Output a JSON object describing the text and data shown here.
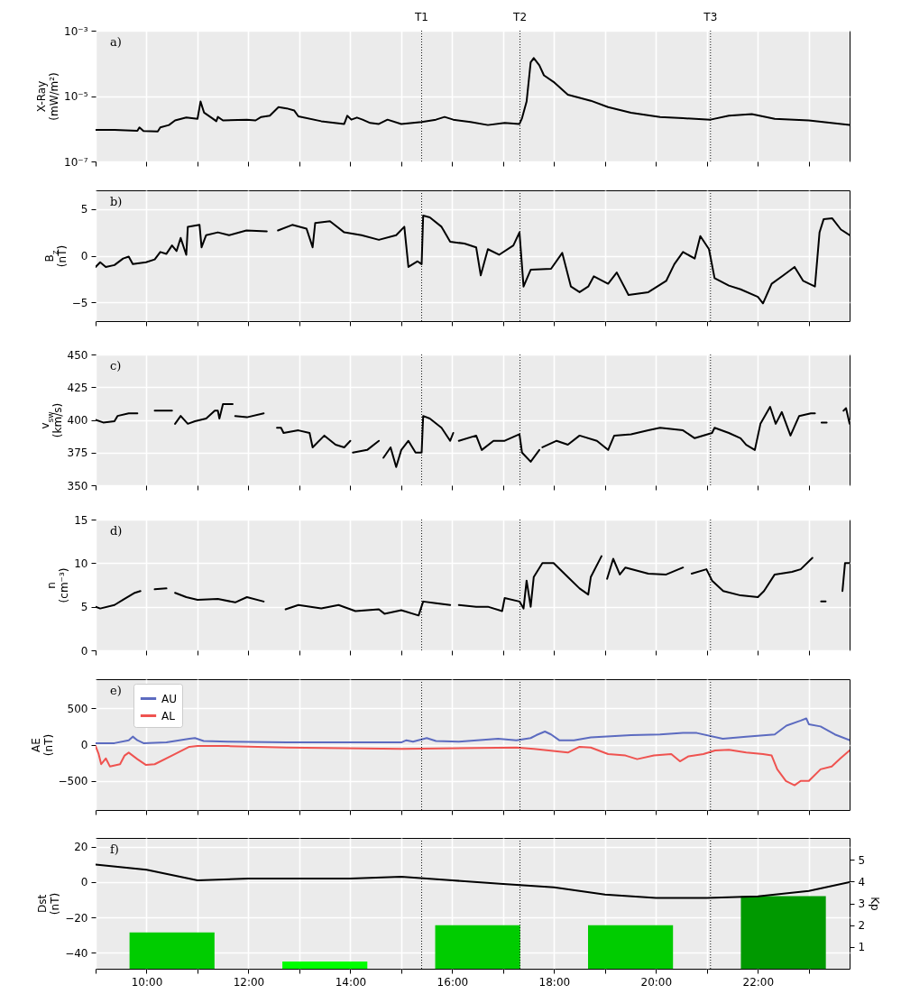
{
  "chart_data": [
    {
      "type": "line",
      "ylabel": "X-Ray\n(mW/m²)",
      "annotations": [
        "a)"
      ],
      "x": [
        9,
        9.37,
        9.82,
        9.86,
        9.94,
        10.22,
        10.27,
        10.44,
        10.56,
        10.78,
        11,
        11.06,
        11.13,
        11.29,
        11.37,
        11.4,
        11.5,
        11.97,
        12.14,
        12.25,
        12.42,
        12.59,
        12.75,
        12.9,
        12.98,
        13.43,
        13.88,
        13.94,
        14.02,
        14.13,
        14.24,
        14.39,
        14.56,
        14.73,
        15,
        15.4,
        15.68,
        15.85,
        16.02,
        16.36,
        16.7,
        17.03,
        17.32,
        17.37,
        17.46,
        17.54,
        17.6,
        17.71,
        17.8,
        17.99,
        18.27,
        18.72,
        19.06,
        19.51,
        20.08,
        20.53,
        21.07,
        21.43,
        21.88,
        22.33,
        23,
        23.8
      ],
      "series": [
        {
          "color": "#000000",
          "values": [
            9.3e-07,
            9.3e-07,
            8.7e-07,
            1.1e-06,
            8.5e-07,
            8.3e-07,
            1.1e-06,
            1.3e-06,
            1.8e-06,
            2.2e-06,
            2e-06,
            6.8e-06,
            3.1e-06,
            2.1e-06,
            1.7e-06,
            2.3e-06,
            1.8e-06,
            1.9e-06,
            1.8e-06,
            2.3e-06,
            2.5e-06,
            4.6e-06,
            4.2e-06,
            3.6e-06,
            2.4e-06,
            1.7e-06,
            1.4e-06,
            2.5e-06,
            1.9e-06,
            2.2e-06,
            1.9e-06,
            1.5e-06,
            1.4e-06,
            1.9e-06,
            1.4e-06,
            1.6e-06,
            1.9e-06,
            2.3e-06,
            1.9e-06,
            1.6e-06,
            1.3e-06,
            1.5e-06,
            1.4e-06,
            2.1e-06,
            6.8e-06,
            0.000107,
            0.000145,
            8.7e-05,
            4.3e-05,
            2.7e-05,
            1.1e-05,
            7.2e-06,
            4.6e-06,
            3.1e-06,
            2.3e-06,
            2.1e-06,
            1.9e-06,
            2.5e-06,
            2.8e-06,
            2e-06,
            1.8e-06,
            1.3e-06
          ]
        }
      ],
      "xlim": [
        9,
        23.8
      ],
      "xticks": [
        9,
        10,
        11,
        12,
        13,
        14,
        15,
        16,
        17,
        18,
        19,
        20,
        21,
        22,
        23
      ],
      "ylim": [
        1e-07,
        0.001
      ],
      "yticks": [
        {
          "value": 1e-07,
          "label": "10⁻⁷"
        },
        {
          "value": 1e-05,
          "label": "10⁻⁵"
        },
        {
          "value": 0.001,
          "label": "10⁻³"
        }
      ],
      "log": true,
      "grid": true,
      "tick_labels": "y",
      "ref_lines": [
        {
          "axis": "x",
          "value": 15.4,
          "label": "T1",
          "color": "#000000",
          "line_style": "dotted"
        },
        {
          "axis": "x",
          "value": 17.33,
          "label": "T2",
          "color": "#000000",
          "line_style": "dotted"
        },
        {
          "axis": "x",
          "value": 21.07,
          "label": "T3",
          "color": "#000000",
          "line_style": "dotted"
        }
      ]
    },
    {
      "type": "line",
      "ylabel": "B$_{z}$\n(nT)",
      "annotations": [
        "b)"
      ],
      "x": [
        9,
        9.09,
        9.2,
        9.37,
        9.54,
        9.65,
        9.73,
        9.99,
        10.16,
        10.27,
        10.39,
        10.5,
        10.59,
        10.67,
        10.78,
        10.81,
        11.04,
        11.08,
        11.17,
        11.4,
        11.62,
        11.96,
        12.36,
        12.45,
        12.58,
        12.86,
        13.14,
        13.26,
        13.31,
        13.6,
        13.88,
        14.22,
        14.56,
        14.9,
        15.06,
        15.14,
        15.32,
        15.4,
        15.43,
        15.56,
        15.79,
        15.96,
        16.24,
        16.47,
        16.56,
        16.7,
        16.92,
        17.2,
        17.32,
        17.4,
        17.54,
        17.94,
        18.16,
        18.33,
        18.5,
        18.67,
        18.78,
        19.06,
        19.23,
        19.46,
        19.85,
        20.2,
        20.36,
        20.53,
        20.76,
        20.87,
        21.04,
        21.15,
        21.43,
        21.66,
        22,
        22.1,
        22.27,
        22.5,
        22.72,
        22.89,
        23.12,
        23.21,
        23.29,
        23.46,
        23.63,
        23.8
      ],
      "series": [
        {
          "color": "#000000",
          "values": [
            -1.2,
            -0.7,
            -1.2,
            -1,
            -0.3,
            -0.1,
            -0.9,
            -0.7,
            -0.4,
            0.4,
            0.2,
            1.1,
            0.5,
            1.9,
            0.1,
            3.1,
            3.3,
            0.9,
            2.2,
            2.5,
            2.2,
            2.7,
            2.6,
            null,
            2.7,
            3.3,
            2.9,
            0.9,
            3.5,
            3.7,
            2.5,
            2.2,
            1.7,
            2.2,
            3.1,
            -1.2,
            -0.6,
            -0.9,
            4.3,
            4.1,
            3.1,
            1.5,
            1.3,
            0.9,
            -2.1,
            0.7,
            0.1,
            1.1,
            2.5,
            -3.3,
            -1.5,
            -1.4,
            0.3,
            -3.3,
            -3.9,
            -3.3,
            -2.2,
            -3,
            -1.8,
            -4.2,
            -3.9,
            -2.7,
            -0.9,
            0.4,
            -0.3,
            2.1,
            0.7,
            -2.4,
            -3.2,
            -3.6,
            -4.4,
            -5.1,
            -3,
            -2.1,
            -1.2,
            -2.7,
            -3.3,
            2.5,
            3.9,
            4,
            2.8,
            2.2
          ]
        }
      ],
      "xlim": [
        9,
        23.8
      ],
      "xticks": [
        9,
        10,
        11,
        12,
        13,
        14,
        15,
        16,
        17,
        18,
        19,
        20,
        21,
        22,
        23
      ],
      "ylim": [
        -7,
        7
      ],
      "yticks": [
        -5,
        0,
        5
      ],
      "grid": true,
      "tick_labels": "y",
      "ref_lines": [
        {
          "axis": "x",
          "value": 15.4,
          "color": "#000000",
          "line_style": "dotted"
        },
        {
          "axis": "x",
          "value": 17.33,
          "color": "#000000",
          "line_style": "dotted"
        },
        {
          "axis": "x",
          "value": 21.07,
          "color": "#000000",
          "line_style": "dotted"
        }
      ]
    },
    {
      "type": "line",
      "ylabel": "v$_{sw}$\n(km/s)",
      "annotations": [
        "c)"
      ],
      "x": [
        9,
        9.15,
        9.37,
        9.43,
        9.65,
        9.82,
        9.9,
        10.16,
        10.5,
        10.53,
        10.56,
        10.67,
        10.81,
        10.95,
        11.17,
        11.34,
        11.4,
        11.43,
        11.5,
        11.69,
        11.72,
        11.74,
        11.97,
        12.3,
        12.4,
        12.56,
        12.64,
        12.69,
        12.98,
        13.2,
        13.26,
        13.49,
        13.71,
        13.88,
        14,
        14.03,
        14.05,
        14.33,
        14.56,
        14.6,
        14.65,
        14.79,
        14.9,
        15,
        15.14,
        15.28,
        15.4,
        15.43,
        15.56,
        15.79,
        15.96,
        16.02,
        16.08,
        16.13,
        16.47,
        16.58,
        16.81,
        17.03,
        17.32,
        17.37,
        17.54,
        17.71,
        17.74,
        17.77,
        18.05,
        18.27,
        18.5,
        18.84,
        19.06,
        19.18,
        19.51,
        19.85,
        20.08,
        20.53,
        20.76,
        21.1,
        21.15,
        21.43,
        21.66,
        21.77,
        21.94,
        22.05,
        22.24,
        22.35,
        22.47,
        22.64,
        22.81,
        23.04,
        23.12,
        23.2,
        23.25,
        23.35,
        23.45,
        23.68,
        23.73,
        23.8
      ],
      "series": [
        {
          "color": "#000000",
          "values": [
            400,
            398,
            399,
            403,
            405,
            405,
            null,
            407,
            407,
            null,
            397,
            403,
            397,
            399,
            401,
            407,
            407,
            401,
            412,
            412,
            null,
            403,
            402,
            405,
            null,
            394,
            394,
            390,
            392,
            390,
            379,
            388,
            381,
            379,
            384,
            null,
            375,
            377,
            384,
            null,
            371,
            379,
            364,
            377,
            384,
            375,
            375,
            403,
            401,
            394,
            384,
            390,
            null,
            384,
            388,
            377,
            384,
            384,
            389,
            375,
            368,
            377,
            null,
            379,
            384,
            381,
            388,
            384,
            377,
            388,
            389,
            392,
            394,
            392,
            386,
            390,
            394,
            390,
            386,
            381,
            377,
            397,
            410,
            397,
            406,
            388,
            403,
            405,
            405,
            null,
            398,
            398,
            null,
            407,
            409,
            397
          ]
        }
      ],
      "xlim": [
        9,
        23.8
      ],
      "xticks": [
        9,
        10,
        11,
        12,
        13,
        14,
        15,
        16,
        17,
        18,
        19,
        20,
        21,
        22,
        23
      ],
      "ylim": [
        350,
        450
      ],
      "yticks": [
        350,
        375,
        400,
        425,
        450
      ],
      "grid": true,
      "tick_labels": "y",
      "ref_lines": [
        {
          "axis": "x",
          "value": 15.4,
          "color": "#000000",
          "line_style": "dotted"
        },
        {
          "axis": "x",
          "value": 17.33,
          "color": "#000000",
          "line_style": "dotted"
        },
        {
          "axis": "x",
          "value": 21.07,
          "color": "#000000",
          "line_style": "dotted"
        }
      ]
    },
    {
      "type": "line",
      "ylabel": "n\n(cm⁻³)",
      "annotations": [
        "d)"
      ],
      "x": [
        9,
        9.09,
        9.37,
        9.54,
        9.77,
        9.88,
        9.95,
        10.16,
        10.39,
        10.5,
        10.56,
        10.78,
        11,
        11.4,
        11.74,
        11.97,
        12.3,
        12.4,
        12.73,
        12.98,
        13.43,
        13.77,
        14.1,
        14.56,
        14.67,
        15,
        15.34,
        15.43,
        15.68,
        15.96,
        16.05,
        16.13,
        16.47,
        16.7,
        16.98,
        17.03,
        17.32,
        17.4,
        17.46,
        17.54,
        17.6,
        17.77,
        17.99,
        18.27,
        18.5,
        18.67,
        18.72,
        18.93,
        19,
        19.04,
        19.16,
        19.29,
        19.4,
        19.85,
        20.2,
        20.53,
        20.6,
        20.7,
        20.99,
        21.1,
        21.32,
        21.66,
        22,
        22.12,
        22.33,
        22.67,
        22.84,
        23.07,
        23.15,
        23.24,
        23.33,
        23.5,
        23.66,
        23.71,
        23.8
      ],
      "series": [
        {
          "color": "#000000",
          "values": [
            5,
            4.8,
            5.2,
            5.8,
            6.6,
            6.8,
            null,
            7,
            7.1,
            null,
            6.6,
            6.1,
            5.8,
            5.9,
            5.5,
            6.1,
            5.6,
            null,
            4.7,
            5.2,
            4.8,
            5.2,
            4.5,
            4.7,
            4.2,
            4.6,
            4,
            5.6,
            5.4,
            5.2,
            null,
            5.2,
            5,
            5,
            4.5,
            6,
            5.6,
            4.8,
            8,
            5,
            8.4,
            10,
            10,
            8.4,
            7.1,
            6.4,
            8.4,
            10.8,
            null,
            8.2,
            10.5,
            8.7,
            9.5,
            8.8,
            8.7,
            9.5,
            null,
            8.8,
            9.3,
            8,
            6.8,
            6.3,
            6.1,
            6.8,
            8.7,
            9,
            9.3,
            10.6,
            null,
            5.6,
            5.6,
            null,
            6.8,
            10,
            10
          ]
        }
      ],
      "xlim": [
        9,
        23.8
      ],
      "xticks": [
        9,
        10,
        11,
        12,
        13,
        14,
        15,
        16,
        17,
        18,
        19,
        20,
        21,
        22,
        23
      ],
      "ylim": [
        0,
        15
      ],
      "yticks": [
        0,
        5,
        10,
        15
      ],
      "grid": true,
      "tick_labels": "y",
      "ref_lines": [
        {
          "axis": "x",
          "value": 15.4,
          "color": "#000000",
          "line_style": "dotted"
        },
        {
          "axis": "x",
          "value": 17.33,
          "color": "#000000",
          "line_style": "dotted"
        },
        {
          "axis": "x",
          "value": 21.07,
          "color": "#000000",
          "line_style": "dotted"
        }
      ]
    },
    {
      "type": "line",
      "ylabel": "AE\n(nT)",
      "annotations": [
        "e)"
      ],
      "series": [
        {
          "name": "AU",
          "color": "#5c6bc0",
          "x": [
            9,
            9.37,
            9.65,
            9.73,
            9.82,
            9.94,
            10.39,
            10.84,
            10.95,
            11.12,
            11.6,
            12.75,
            15,
            15.1,
            15.23,
            15.5,
            15.68,
            16.13,
            16.9,
            17.26,
            17.54,
            17.65,
            17.82,
            17.94,
            18.1,
            18.39,
            18.72,
            19.51,
            20.08,
            20.53,
            20.8,
            21.31,
            21.77,
            22.33,
            22.56,
            22.84,
            22.95,
            23,
            23.23,
            23.51,
            23.8
          ],
          "values": [
            20,
            20,
            60,
            110,
            60,
            20,
            30,
            80,
            90,
            50,
            40,
            30,
            30,
            60,
            40,
            90,
            50,
            40,
            80,
            60,
            90,
            130,
            180,
            140,
            60,
            60,
            100,
            130,
            140,
            160,
            160,
            80,
            110,
            140,
            260,
            330,
            360,
            280,
            250,
            140,
            60
          ]
        },
        {
          "name": "AL",
          "color": "#ef5350",
          "x": [
            9,
            9.06,
            9.11,
            9.2,
            9.28,
            9.48,
            9.57,
            9.65,
            9.82,
            9.99,
            10.16,
            10.5,
            10.84,
            11,
            11.6,
            12.75,
            15,
            17.26,
            17.6,
            18.27,
            18.5,
            18.72,
            19.06,
            19.4,
            19.63,
            19.96,
            20.3,
            20.47,
            20.64,
            20.93,
            21.16,
            21.43,
            21.77,
            22.1,
            22.27,
            22.38,
            22.55,
            22.72,
            22.84,
            23,
            23.23,
            23.45,
            23.62,
            23.8
          ],
          "values": [
            -20,
            -130,
            -270,
            -190,
            -300,
            -270,
            -150,
            -110,
            -200,
            -280,
            -270,
            -150,
            -30,
            -20,
            -20,
            -40,
            -60,
            -40,
            -60,
            -110,
            -30,
            -40,
            -130,
            -150,
            -200,
            -150,
            -130,
            -230,
            -160,
            -130,
            -80,
            -70,
            -110,
            -130,
            -150,
            -340,
            -500,
            -560,
            -500,
            -500,
            -340,
            -300,
            -190,
            -80
          ]
        }
      ],
      "xlim": [
        9,
        23.8
      ],
      "xticks": [
        9,
        10,
        11,
        12,
        13,
        14,
        15,
        16,
        17,
        18,
        19,
        20,
        21,
        22,
        23
      ],
      "ylim": [
        -900,
        900
      ],
      "yticks": [
        -500,
        0,
        500
      ],
      "grid": true,
      "tick_labels": "y",
      "legend": "top left",
      "ref_lines": [
        {
          "axis": "x",
          "value": 15.4,
          "color": "#000000",
          "line_style": "dotted"
        },
        {
          "axis": "x",
          "value": 17.33,
          "color": "#000000",
          "line_style": "dotted"
        },
        {
          "axis": "x",
          "value": 21.07,
          "color": "#000000",
          "line_style": "dotted"
        }
      ]
    },
    {
      "type": "line",
      "ylabel": "Dst\n(nT)",
      "y2label": "Kp",
      "annotations": [
        "f)"
      ],
      "series": [
        {
          "type": "bar",
          "axis": "y2",
          "x": [
            10.5,
            13.5,
            16.5,
            19.5,
            22.5
          ],
          "values": [
            1.67,
            0.33,
            2,
            2,
            3.33
          ],
          "colors": [
            "#00cc00",
            "#00ff00",
            "#00cc00",
            "#00cc00",
            "#009900"
          ]
        },
        {
          "color": "#000000",
          "x": [
            9,
            10,
            11,
            12,
            13,
            14,
            15,
            16,
            17,
            18,
            19,
            20,
            21,
            22,
            23,
            23.8
          ],
          "values": [
            10,
            7,
            1,
            2,
            2,
            2,
            3,
            1,
            -1,
            -3,
            -7,
            -9,
            -9,
            -8,
            -5,
            0
          ]
        }
      ],
      "xlim": [
        9,
        23.8
      ],
      "xticks": [
        {
          "value": 9,
          "label": null
        },
        {
          "value": 10,
          "label": "10:00"
        },
        {
          "value": 11,
          "label": null
        },
        {
          "value": 12,
          "label": "12:00"
        },
        {
          "value": 13,
          "label": null
        },
        {
          "value": 14,
          "label": "14:00"
        },
        {
          "value": 15,
          "label": null
        },
        {
          "value": 16,
          "label": "16:00"
        },
        {
          "value": 17,
          "label": null
        },
        {
          "value": 18,
          "label": "18:00"
        },
        {
          "value": 19,
          "label": null
        },
        {
          "value": 20,
          "label": "20:00"
        },
        {
          "value": 21,
          "label": null
        },
        {
          "value": 22,
          "label": "22:00"
        },
        {
          "value": 23,
          "label": null
        }
      ],
      "ylim": [
        -49,
        25
      ],
      "yticks": [
        -40,
        -20,
        0,
        20
      ],
      "y2lim": [
        0,
        6
      ],
      "y2ticks": [
        1,
        2,
        3,
        4,
        5
      ],
      "grid": true,
      "ref_lines": [
        {
          "axis": "x",
          "value": 15.4,
          "color": "#000000",
          "line_style": "dotted"
        },
        {
          "axis": "x",
          "value": 17.33,
          "color": "#000000",
          "line_style": "dotted"
        },
        {
          "axis": "x",
          "value": 21.07,
          "color": "#000000",
          "line_style": "dotted"
        }
      ]
    }
  ]
}
